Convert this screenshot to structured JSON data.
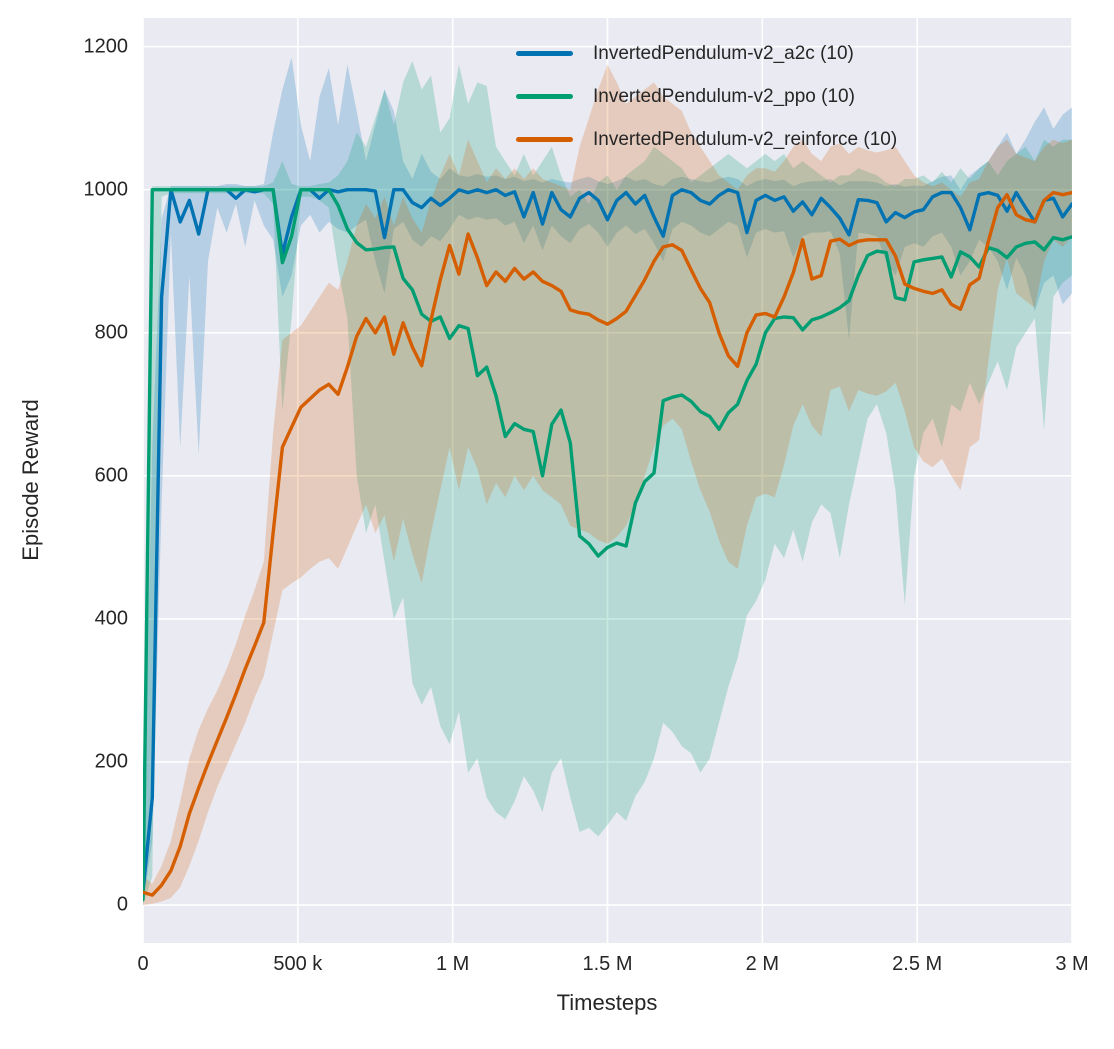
{
  "chart_data": {
    "type": "line",
    "title": "",
    "xlabel": "Timesteps",
    "ylabel": "Episode Reward",
    "xlim": [
      0,
      3000000
    ],
    "ylim": [
      -53,
      1240
    ],
    "grid": true,
    "legend_position": "upper center",
    "plot_background": "#eaeaf2",
    "grid_color": "#ffffff",
    "text_color": "#262626",
    "band_opacity": 0.22,
    "x_start": 0,
    "x_step": 30000,
    "x_ticks": [
      {
        "value": 0,
        "label": "0"
      },
      {
        "value": 500000,
        "label": "500 k"
      },
      {
        "value": 1000000,
        "label": "1 M"
      },
      {
        "value": 1500000,
        "label": "1.5 M"
      },
      {
        "value": 2000000,
        "label": "2 M"
      },
      {
        "value": 2500000,
        "label": "2.5 M"
      },
      {
        "value": 3000000,
        "label": "3 M"
      }
    ],
    "y_ticks": [
      {
        "value": 0,
        "label": "0"
      },
      {
        "value": 200,
        "label": "200"
      },
      {
        "value": 400,
        "label": "400"
      },
      {
        "value": 600,
        "label": "600"
      },
      {
        "value": 800,
        "label": "800"
      },
      {
        "value": 1000,
        "label": "1000"
      },
      {
        "value": 1200,
        "label": "1200"
      }
    ],
    "series": [
      {
        "key": "a2c",
        "name": "InvertedPendulum-v2_a2c (10)",
        "color": "#0173b2",
        "y": [
          20,
          150,
          850,
          1000,
          955,
          985,
          938,
          1000,
          1000,
          1000,
          988,
          1000,
          997,
          1000,
          1000,
          910,
          962,
          1000,
          1000,
          988,
          1000,
          997,
          1000,
          1000,
          1000,
          998,
          933,
          1000,
          1000,
          982,
          975,
          988,
          978,
          988,
          1000,
          996,
          1000,
          996,
          1000,
          992,
          997,
          962,
          996,
          952,
          996,
          972,
          962,
          988,
          996,
          985,
          958,
          985,
          996,
          980,
          992,
          962,
          935,
          992,
          1000,
          996,
          985,
          980,
          992,
          1000,
          996,
          940,
          985,
          992,
          985,
          990,
          970,
          983,
          965,
          988,
          975,
          960,
          937,
          986,
          985,
          982,
          955,
          968,
          961,
          969,
          972,
          990,
          996,
          996,
          975,
          944,
          993,
          996,
          992,
          970,
          996,
          975,
          955,
          985,
          988,
          962,
          980
        ],
        "band_lo": [
          0,
          90,
          560,
          940,
          640,
          880,
          630,
          900,
          975,
          940,
          980,
          920,
          985,
          950,
          930,
          850,
          880,
          950,
          965,
          940,
          955,
          945,
          940,
          950,
          958,
          900,
          855,
          945,
          955,
          930,
          920,
          935,
          928,
          945,
          965,
          958,
          962,
          958,
          960,
          950,
          955,
          925,
          950,
          915,
          950,
          935,
          925,
          945,
          952,
          940,
          920,
          940,
          950,
          938,
          945,
          925,
          900,
          945,
          955,
          950,
          940,
          935,
          945,
          955,
          950,
          905,
          940,
          945,
          940,
          942,
          905,
          935,
          940,
          940,
          942,
          910,
          790,
          940,
          938,
          935,
          900,
          880,
          920,
          925,
          920,
          935,
          940,
          920,
          880,
          900,
          930,
          920,
          900,
          860,
          905,
          880,
          830,
          870,
          880,
          840,
          855
        ],
        "band_hi": [
          55,
          640,
          960,
          1005,
          1005,
          1005,
          1005,
          1005,
          1005,
          1008,
          1008,
          1005,
          1005,
          1008,
          1080,
          1140,
          1185,
          1090,
          1040,
          1130,
          1170,
          1090,
          1175,
          1110,
          1040,
          1090,
          1140,
          1110,
          1040,
          1015,
          1050,
          1025,
          1015,
          1030,
          1020,
          1018,
          1022,
          1018,
          1020,
          1015,
          1018,
          1012,
          1015,
          1010,
          1015,
          1012,
          1010,
          1015,
          1018,
          1012,
          1008,
          1012,
          1018,
          1012,
          1015,
          1008,
          1005,
          1015,
          1018,
          1015,
          1012,
          1010,
          1015,
          1018,
          1015,
          1005,
          1012,
          1015,
          1012,
          1014,
          1005,
          1010,
          1012,
          1012,
          1015,
          1006,
          1012,
          1012,
          1012,
          1010,
          1005,
          1008,
          1004,
          1006,
          1005,
          1012,
          1018,
          1020,
          1000,
          1020,
          1030,
          1040,
          1060,
          1080,
          1050,
          1070,
          1095,
          1115,
          1085,
          1105,
          1115
        ]
      },
      {
        "key": "ppo",
        "name": "InvertedPendulum-v2_ppo (10)",
        "color": "#029e73",
        "y": [
          8,
          1000,
          1000,
          1000,
          1000,
          1000,
          1000,
          1000,
          1000,
          1000,
          1000,
          1000,
          1000,
          1000,
          1000,
          898,
          935,
          1000,
          1000,
          1000,
          1000,
          978,
          945,
          926,
          916,
          917,
          919,
          920,
          876,
          860,
          826,
          816,
          822,
          792,
          810,
          806,
          740,
          752,
          712,
          655,
          673,
          665,
          662,
          600,
          672,
          692,
          646,
          516,
          505,
          488,
          500,
          506,
          502,
          562,
          592,
          604,
          705,
          710,
          713,
          704,
          690,
          683,
          665,
          688,
          700,
          733,
          756,
          800,
          820,
          822,
          821,
          804,
          818,
          822,
          828,
          835,
          845,
          880,
          908,
          914,
          912,
          849,
          846,
          899,
          902,
          904,
          906,
          878,
          913,
          906,
          892,
          919,
          915,
          905,
          920,
          925,
          927,
          916,
          933,
          930,
          934
        ],
        "band_lo": [
          0,
          40,
          990,
          995,
          995,
          995,
          995,
          995,
          995,
          995,
          995,
          995,
          995,
          995,
          980,
          690,
          820,
          990,
          990,
          985,
          975,
          890,
          820,
          600,
          520,
          560,
          480,
          400,
          430,
          310,
          280,
          305,
          250,
          225,
          270,
          185,
          205,
          150,
          130,
          120,
          145,
          180,
          160,
          130,
          185,
          205,
          150,
          102,
          108,
          96,
          112,
          130,
          118,
          152,
          172,
          205,
          255,
          242,
          222,
          212,
          185,
          205,
          255,
          305,
          345,
          405,
          425,
          455,
          505,
          485,
          525,
          480,
          535,
          560,
          548,
          485,
          560,
          620,
          680,
          700,
          660,
          580,
          420,
          600,
          660,
          680,
          640,
          700,
          690,
          730,
          700,
          730,
          760,
          720,
          780,
          800,
          820,
          664,
          850,
          870,
          880
        ],
        "band_hi": [
          30,
          1005,
          1005,
          1005,
          1005,
          1005,
          1005,
          1005,
          1005,
          1005,
          1005,
          1005,
          1005,
          1005,
          1010,
          1040,
          1008,
          1005,
          1005,
          1008,
          1010,
          1020,
          1040,
          1080,
          1060,
          1100,
          1140,
          1090,
          1150,
          1180,
          1140,
          1160,
          1080,
          1100,
          1175,
          1120,
          1150,
          1145,
          1060,
          1040,
          1020,
          1050,
          1020,
          1040,
          1060,
          1020,
          990,
          1000,
          980,
          1010,
          1020,
          1000,
          1020,
          1030,
          1040,
          1060,
          1050,
          1040,
          1030,
          1010,
          1020,
          1030,
          1040,
          1050,
          1040,
          1030,
          1040,
          1050,
          1040,
          1050,
          1030,
          1040,
          1030,
          1020,
          1010,
          1020,
          1020,
          1030,
          1025,
          1020,
          1010,
          1005,
          1015,
          1015,
          1020,
          1010,
          1025,
          1010,
          1030,
          1015,
          1030,
          1040,
          1020,
          1040,
          1050,
          1060,
          1040,
          1070,
          1060,
          1070,
          1070
        ]
      },
      {
        "key": "reinforce",
        "name": "InvertedPendulum-v2_reinforce (10)",
        "color": "#d55e00",
        "y": [
          18,
          14,
          28,
          48,
          82,
          128,
          164,
          198,
          230,
          262,
          295,
          330,
          362,
          395,
          520,
          640,
          668,
          696,
          708,
          720,
          728,
          714,
          752,
          795,
          820,
          800,
          822,
          770,
          814,
          780,
          754,
          818,
          874,
          922,
          882,
          938,
          905,
          866,
          885,
          872,
          890,
          875,
          885,
          872,
          866,
          858,
          832,
          828,
          826,
          818,
          812,
          820,
          830,
          852,
          874,
          900,
          920,
          923,
          915,
          888,
          862,
          842,
          800,
          768,
          753,
          800,
          825,
          827,
          822,
          850,
          884,
          930,
          875,
          880,
          928,
          931,
          922,
          928,
          930,
          930,
          930,
          907,
          868,
          862,
          858,
          855,
          860,
          840,
          833,
          867,
          876,
          928,
          975,
          993,
          965,
          958,
          955,
          985,
          996,
          993,
          996
        ],
        "band_lo": [
          0,
          2,
          5,
          10,
          25,
          55,
          90,
          130,
          165,
          195,
          225,
          255,
          290,
          320,
          380,
          440,
          450,
          458,
          470,
          480,
          485,
          470,
          500,
          530,
          560,
          520,
          545,
          480,
          540,
          490,
          450,
          520,
          580,
          640,
          580,
          640,
          610,
          560,
          590,
          570,
          600,
          580,
          600,
          580,
          570,
          560,
          530,
          525,
          520,
          510,
          505,
          515,
          530,
          560,
          600,
          640,
          670,
          680,
          665,
          620,
          580,
          550,
          510,
          480,
          470,
          530,
          570,
          575,
          570,
          615,
          670,
          700,
          670,
          655,
          720,
          725,
          690,
          720,
          715,
          712,
          718,
          730,
          690,
          640,
          620,
          612,
          624,
          600,
          580,
          640,
          650,
          760,
          860,
          905,
          855,
          845,
          835,
          900,
          930,
          920,
          935
        ],
        "band_hi": [
          40,
          30,
          55,
          90,
          145,
          205,
          245,
          275,
          300,
          330,
          365,
          405,
          440,
          480,
          660,
          790,
          800,
          810,
          830,
          850,
          870,
          860,
          900,
          950,
          980,
          960,
          990,
          950,
          990,
          960,
          940,
          985,
          1020,
          1050,
          1020,
          1070,
          1040,
          1010,
          1030,
          1015,
          1030,
          1015,
          1030,
          1015,
          1010,
          1005,
          1000,
          1060,
          1100,
          1140,
          1175,
          1150,
          1120,
          1130,
          1140,
          1150,
          1130,
          1120,
          1110,
          1080,
          1060,
          1040,
          1020,
          1010,
          1000,
          1020,
          1030,
          1030,
          1025,
          1040,
          1060,
          1070,
          1050,
          1040,
          1060,
          1065,
          1050,
          1060,
          1055,
          1052,
          1055,
          1060,
          1040,
          1020,
          1010,
          1005,
          1010,
          1000,
          990,
          1010,
          1015,
          1040,
          1060,
          1070,
          1050,
          1045,
          1040,
          1060,
          1070,
          1065,
          1070
        ]
      }
    ]
  }
}
